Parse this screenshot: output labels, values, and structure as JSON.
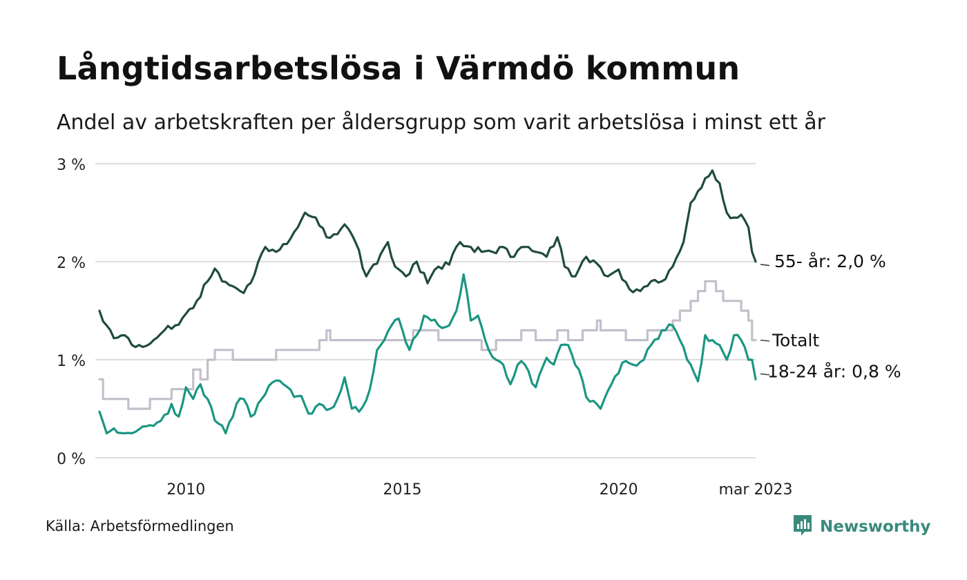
{
  "header": {
    "title": "Långtidsarbetslösa i Värmdö kommun",
    "subtitle": "Andel av arbetskraften per åldersgrupp som varit arbetslösa i minst ett år"
  },
  "footer": {
    "source": "Källa: Arbetsförmedlingen",
    "brand": "Newsworthy"
  },
  "colors": {
    "series_55": "#1f4b3e",
    "series_total": "#c3bfcb",
    "series_18_24": "#1a9682",
    "grid": "#dcdcdc",
    "brand": "#3a8a7c"
  },
  "icons": {
    "brand_logo": "bar-chart-speech-bubble-icon"
  },
  "chart_data": {
    "type": "line",
    "x_start": "2008-01",
    "x_end": "2023-03",
    "x_step": "month",
    "ylim": [
      0,
      3
    ],
    "y_ticks": [
      {
        "value": 0,
        "label": "0 %"
      },
      {
        "value": 1,
        "label": "1 %"
      },
      {
        "value": 2,
        "label": "2 %"
      },
      {
        "value": 3,
        "label": "3 %"
      }
    ],
    "x_ticks": [
      {
        "date": "2010-01",
        "label": "2010"
      },
      {
        "date": "2015-01",
        "label": "2015"
      },
      {
        "date": "2020-01",
        "label": "2020"
      },
      {
        "date": "2023-03",
        "label": "mar 2023"
      }
    ],
    "grid": true,
    "series": [
      {
        "key": "s55",
        "end_label": "55- år: 2,0 %",
        "anchors": [
          [
            "2008-01",
            1.5
          ],
          [
            "2008-03",
            1.35
          ],
          [
            "2008-05",
            1.22
          ],
          [
            "2008-08",
            1.25
          ],
          [
            "2008-10",
            1.15
          ],
          [
            "2009-01",
            1.13
          ],
          [
            "2009-04",
            1.2
          ],
          [
            "2009-07",
            1.3
          ],
          [
            "2009-10",
            1.35
          ],
          [
            "2010-01",
            1.47
          ],
          [
            "2010-04",
            1.6
          ],
          [
            "2010-07",
            1.8
          ],
          [
            "2010-09",
            1.93
          ],
          [
            "2010-11",
            1.8
          ],
          [
            "2011-02",
            1.75
          ],
          [
            "2011-05",
            1.68
          ],
          [
            "2011-08",
            1.87
          ],
          [
            "2011-11",
            2.15
          ],
          [
            "2012-02",
            2.1
          ],
          [
            "2012-05",
            2.18
          ],
          [
            "2012-08",
            2.35
          ],
          [
            "2012-10",
            2.5
          ],
          [
            "2013-01",
            2.45
          ],
          [
            "2013-04",
            2.25
          ],
          [
            "2013-07",
            2.28
          ],
          [
            "2013-09",
            2.38
          ],
          [
            "2013-12",
            2.2
          ],
          [
            "2014-03",
            1.85
          ],
          [
            "2014-06",
            1.98
          ],
          [
            "2014-09",
            2.2
          ],
          [
            "2014-11",
            1.95
          ],
          [
            "2015-02",
            1.85
          ],
          [
            "2015-05",
            2.0
          ],
          [
            "2015-08",
            1.78
          ],
          [
            "2015-11",
            1.95
          ],
          [
            "2016-02",
            1.97
          ],
          [
            "2016-05",
            2.2
          ],
          [
            "2016-08",
            2.15
          ],
          [
            "2016-11",
            2.1
          ],
          [
            "2017-02",
            2.1
          ],
          [
            "2017-05",
            2.15
          ],
          [
            "2017-08",
            2.05
          ],
          [
            "2017-11",
            2.15
          ],
          [
            "2018-02",
            2.1
          ],
          [
            "2018-05",
            2.05
          ],
          [
            "2018-08",
            2.25
          ],
          [
            "2018-10",
            1.95
          ],
          [
            "2019-01",
            1.85
          ],
          [
            "2019-04",
            2.05
          ],
          [
            "2019-07",
            1.98
          ],
          [
            "2019-10",
            1.85
          ],
          [
            "2020-01",
            1.92
          ],
          [
            "2020-04",
            1.72
          ],
          [
            "2020-07",
            1.7
          ],
          [
            "2020-10",
            1.8
          ],
          [
            "2021-01",
            1.8
          ],
          [
            "2021-04",
            1.95
          ],
          [
            "2021-07",
            2.2
          ],
          [
            "2021-09",
            2.6
          ],
          [
            "2021-11",
            2.72
          ],
          [
            "2022-01",
            2.85
          ],
          [
            "2022-03",
            2.93
          ],
          [
            "2022-05",
            2.8
          ],
          [
            "2022-07",
            2.5
          ],
          [
            "2022-09",
            2.45
          ],
          [
            "2022-11",
            2.48
          ],
          [
            "2023-01",
            2.35
          ],
          [
            "2023-02",
            2.1
          ],
          [
            "2023-03",
            2.0
          ]
        ]
      },
      {
        "key": "total",
        "end_label": "Totalt",
        "anchors": [
          [
            "2008-01",
            0.8
          ],
          [
            "2008-02",
            0.6
          ],
          [
            "2008-08",
            0.6
          ],
          [
            "2008-09",
            0.5
          ],
          [
            "2009-02",
            0.5
          ],
          [
            "2009-03",
            0.6
          ],
          [
            "2009-08",
            0.6
          ],
          [
            "2009-09",
            0.7
          ],
          [
            "2010-01",
            0.7
          ],
          [
            "2010-03",
            0.9
          ],
          [
            "2010-05",
            0.8
          ],
          [
            "2010-07",
            1.0
          ],
          [
            "2010-09",
            1.1
          ],
          [
            "2011-01",
            1.1
          ],
          [
            "2011-02",
            1.0
          ],
          [
            "2012-01",
            1.0
          ],
          [
            "2012-02",
            1.1
          ],
          [
            "2013-01",
            1.1
          ],
          [
            "2013-02",
            1.2
          ],
          [
            "2013-04",
            1.3
          ],
          [
            "2013-05",
            1.2
          ],
          [
            "2015-03",
            1.2
          ],
          [
            "2015-04",
            1.3
          ],
          [
            "2015-10",
            1.3
          ],
          [
            "2015-11",
            1.2
          ],
          [
            "2016-10",
            1.2
          ],
          [
            "2016-11",
            1.1
          ],
          [
            "2017-01",
            1.1
          ],
          [
            "2017-03",
            1.2
          ],
          [
            "2017-09",
            1.2
          ],
          [
            "2017-10",
            1.3
          ],
          [
            "2018-01",
            1.3
          ],
          [
            "2018-02",
            1.2
          ],
          [
            "2018-07",
            1.2
          ],
          [
            "2018-08",
            1.3
          ],
          [
            "2018-10",
            1.3
          ],
          [
            "2018-11",
            1.2
          ],
          [
            "2019-02",
            1.2
          ],
          [
            "2019-03",
            1.3
          ],
          [
            "2019-06",
            1.3
          ],
          [
            "2019-07",
            1.4
          ],
          [
            "2019-08",
            1.3
          ],
          [
            "2020-02",
            1.3
          ],
          [
            "2020-03",
            1.2
          ],
          [
            "2020-08",
            1.2
          ],
          [
            "2020-09",
            1.3
          ],
          [
            "2021-03",
            1.3
          ],
          [
            "2021-04",
            1.4
          ],
          [
            "2021-06",
            1.5
          ],
          [
            "2021-09",
            1.6
          ],
          [
            "2021-11",
            1.7
          ],
          [
            "2022-01",
            1.8
          ],
          [
            "2022-03",
            1.8
          ],
          [
            "2022-04",
            1.7
          ],
          [
            "2022-06",
            1.6
          ],
          [
            "2022-10",
            1.6
          ],
          [
            "2022-11",
            1.5
          ],
          [
            "2023-01",
            1.4
          ],
          [
            "2023-02",
            1.2
          ],
          [
            "2023-03",
            1.2
          ]
        ]
      },
      {
        "key": "s1824",
        "end_label": "18-24 år: 0,8 %",
        "anchors": [
          [
            "2008-01",
            0.47
          ],
          [
            "2008-03",
            0.25
          ],
          [
            "2008-05",
            0.3
          ],
          [
            "2008-08",
            0.25
          ],
          [
            "2008-10",
            0.25
          ],
          [
            "2009-01",
            0.32
          ],
          [
            "2009-05",
            0.36
          ],
          [
            "2009-08",
            0.45
          ],
          [
            "2009-09",
            0.55
          ],
          [
            "2009-11",
            0.42
          ],
          [
            "2010-01",
            0.72
          ],
          [
            "2010-03",
            0.6
          ],
          [
            "2010-05",
            0.75
          ],
          [
            "2010-07",
            0.6
          ],
          [
            "2010-09",
            0.38
          ],
          [
            "2010-12",
            0.25
          ],
          [
            "2011-03",
            0.55
          ],
          [
            "2011-05",
            0.6
          ],
          [
            "2011-07",
            0.42
          ],
          [
            "2011-10",
            0.6
          ],
          [
            "2012-01",
            0.77
          ],
          [
            "2012-04",
            0.75
          ],
          [
            "2012-07",
            0.62
          ],
          [
            "2012-09",
            0.63
          ],
          [
            "2012-11",
            0.45
          ],
          [
            "2013-02",
            0.55
          ],
          [
            "2013-05",
            0.5
          ],
          [
            "2013-07",
            0.6
          ],
          [
            "2013-09",
            0.82
          ],
          [
            "2013-11",
            0.5
          ],
          [
            "2014-01",
            0.47
          ],
          [
            "2014-04",
            0.7
          ],
          [
            "2014-06",
            1.1
          ],
          [
            "2014-08",
            1.2
          ],
          [
            "2014-10",
            1.35
          ],
          [
            "2014-12",
            1.42
          ],
          [
            "2015-03",
            1.1
          ],
          [
            "2015-05",
            1.25
          ],
          [
            "2015-07",
            1.45
          ],
          [
            "2015-09",
            1.4
          ],
          [
            "2015-11",
            1.35
          ],
          [
            "2016-02",
            1.35
          ],
          [
            "2016-04",
            1.5
          ],
          [
            "2016-06",
            1.87
          ],
          [
            "2016-08",
            1.4
          ],
          [
            "2016-10",
            1.45
          ],
          [
            "2016-12",
            1.2
          ],
          [
            "2017-03",
            1.0
          ],
          [
            "2017-05",
            0.95
          ],
          [
            "2017-07",
            0.75
          ],
          [
            "2017-09",
            0.95
          ],
          [
            "2017-11",
            0.95
          ],
          [
            "2018-02",
            0.72
          ],
          [
            "2018-05",
            1.02
          ],
          [
            "2018-07",
            0.95
          ],
          [
            "2018-09",
            1.15
          ],
          [
            "2018-11",
            1.15
          ],
          [
            "2019-02",
            0.9
          ],
          [
            "2019-04",
            0.62
          ],
          [
            "2019-06",
            0.58
          ],
          [
            "2019-08",
            0.5
          ],
          [
            "2019-11",
            0.75
          ],
          [
            "2020-02",
            0.97
          ],
          [
            "2020-05",
            0.95
          ],
          [
            "2020-08",
            1.0
          ],
          [
            "2020-10",
            1.15
          ],
          [
            "2021-01",
            1.3
          ],
          [
            "2021-04",
            1.35
          ],
          [
            "2021-06",
            1.2
          ],
          [
            "2021-09",
            0.95
          ],
          [
            "2021-11",
            0.78
          ],
          [
            "2022-01",
            1.25
          ],
          [
            "2022-03",
            1.2
          ],
          [
            "2022-05",
            1.15
          ],
          [
            "2022-07",
            1.0
          ],
          [
            "2022-09",
            1.25
          ],
          [
            "2022-11",
            1.2
          ],
          [
            "2023-01",
            1.0
          ],
          [
            "2023-02",
            1.0
          ],
          [
            "2023-03",
            0.8
          ]
        ]
      }
    ]
  }
}
